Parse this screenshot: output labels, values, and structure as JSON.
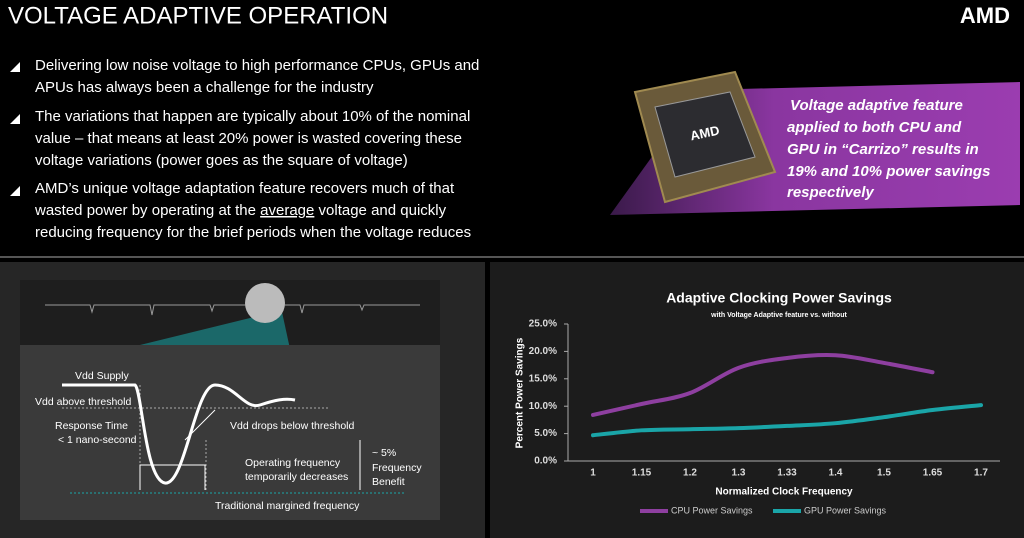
{
  "header": {
    "title": "VOLTAGE ADAPTIVE OPERATION",
    "logo": "AMD"
  },
  "bullets": [
    [
      "Delivering low noise voltage to high performance CPUs, GPUs and",
      "APUs has always been a challenge for the industry"
    ],
    [
      "The variations that happen are typically about 10% of the nominal",
      "value – that means at least 20% power is wasted covering these",
      "voltage variations (power goes as the square of voltage)"
    ],
    [
      "AMD’s unique voltage adaptation feature recovers much of that",
      "wasted power by operating at the ",
      "average",
      " voltage and quickly",
      "reducing frequency for the brief periods when the voltage reduces"
    ]
  ],
  "chip_label": "AMD",
  "callout": [
    "Voltage adaptive feature",
    "applied to both CPU and",
    "GPU in “Carrizo” results in",
    "19% and 10% power savings",
    "respectively"
  ],
  "diagram": {
    "labels": [
      "Vdd Supply",
      "Vdd above threshold",
      "Response Time",
      "< 1 nano-second",
      "Vdd drops below threshold",
      "~ 5%",
      "Frequency",
      "Benefit",
      "Operating frequency",
      "temporarily decreases",
      "Traditional margined frequency"
    ]
  },
  "chart_data": {
    "type": "line",
    "title": "Adaptive Clocking Power Savings",
    "subtitle": "with Voltage Adaptive feature vs. without",
    "x_label": "Normalized Clock Frequency",
    "y_label": "Percent Power Savings",
    "categories": [
      "1",
      "1.15",
      "1.2",
      "1.3",
      "1.33",
      "1.4",
      "1.5",
      "1.65",
      "1.7"
    ],
    "series": [
      {
        "name": "CPU Power Savings",
        "color": "#8e3fa0",
        "values": [
          8.4,
          10.4,
          12.4,
          17,
          18.8,
          19.3,
          17.9,
          16.2,
          null
        ]
      },
      {
        "name": "GPU Power Savings",
        "color": "#1aa5a8",
        "values": [
          4.7,
          5.6,
          5.8,
          6,
          6.4,
          6.9,
          8,
          9.3,
          10.2
        ]
      }
    ],
    "ylim": [
      0,
      25
    ],
    "yticks": [
      {
        "value": 0,
        "label": "0.0%"
      },
      {
        "value": 5,
        "label": "5.0%"
      },
      {
        "value": 10,
        "label": "10.0%"
      },
      {
        "value": 15,
        "label": "15.0%"
      },
      {
        "value": 20,
        "label": "20.0%"
      },
      {
        "value": 25,
        "label": "25.0%"
      }
    ],
    "grid": false,
    "legend": "bottom"
  }
}
